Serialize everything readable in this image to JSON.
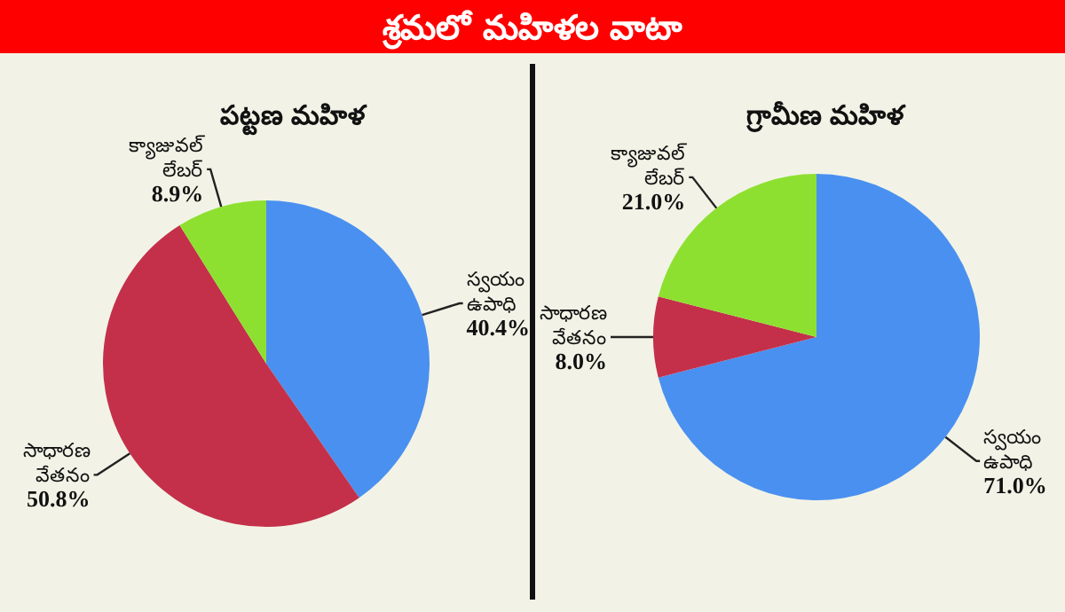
{
  "chart_data": [
    {
      "type": "other",
      "title": "శ్రమలో మహిళల వాటా"
    },
    {
      "type": "pie",
      "title": "పట్టణ మహిళ",
      "categories": [
        "స్వయం ఉపాధి",
        "సాధారణ వేతనం",
        "క్యాజువల్ లేబర్"
      ],
      "values": [
        40.4,
        50.8,
        8.9
      ],
      "colors": [
        "#4a90f0",
        "#c4304a",
        "#8ee030"
      ],
      "value_labels": [
        "40.4%",
        "50.8%",
        "8.9%"
      ]
    },
    {
      "type": "pie",
      "title": "గ్రామీణ మహిళ",
      "categories": [
        "స్వయం ఉపాధి",
        "సాధారణ వేతనం",
        "క్యాజువల్ లేబర్"
      ],
      "values": [
        71.0,
        8.0,
        21.0
      ],
      "colors": [
        "#4a90f0",
        "#c4304a",
        "#8ee030"
      ],
      "value_labels": [
        "71.0%",
        "8.0%",
        "21.0%"
      ]
    }
  ]
}
